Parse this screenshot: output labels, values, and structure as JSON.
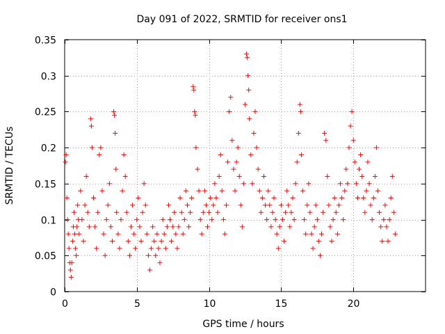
{
  "chart_data": {
    "type": "scatter",
    "title": "Day 091 of 2022, SRMTID for receiver ons1",
    "xlabel": "GPS time / hours",
    "ylabel": "SRMTID / TECUs",
    "xlim": [
      0,
      25
    ],
    "ylim": [
      0,
      0.35
    ],
    "xticks": [
      0,
      5,
      10,
      15,
      20
    ],
    "yticks": [
      0,
      0.05,
      0.1,
      0.15,
      0.2,
      0.25,
      0.3,
      0.35
    ],
    "xtick_labels": [
      "0",
      "5",
      "10",
      "15",
      "20"
    ],
    "ytick_labels": [
      "0",
      "0.05",
      "0.1",
      "0.15",
      "0.2",
      "0.25",
      "0.3",
      "0.35"
    ],
    "grid": true,
    "marker": "+",
    "color": "#ff0000",
    "series": [
      {
        "name": "ons1",
        "points": [
          [
            0.05,
            0.18
          ],
          [
            0.1,
            0.19
          ],
          [
            0.15,
            0.13
          ],
          [
            0.2,
            0.1
          ],
          [
            0.25,
            0.08
          ],
          [
            0.3,
            0.06
          ],
          [
            0.35,
            0.04
          ],
          [
            0.4,
            0.03
          ],
          [
            0.45,
            0.02
          ],
          [
            0.5,
            0.04
          ],
          [
            0.55,
            0.07
          ],
          [
            0.6,
            0.09
          ],
          [
            0.65,
            0.11
          ],
          [
            0.7,
            0.08
          ],
          [
            0.75,
            0.06
          ],
          [
            0.8,
            0.05
          ],
          [
            0.85,
            0.09
          ],
          [
            0.9,
            0.12
          ],
          [
            0.95,
            0.1
          ],
          [
            1.0,
            0.08
          ],
          [
            1.1,
            0.14
          ],
          [
            1.2,
            0.1
          ],
          [
            1.3,
            0.07
          ],
          [
            1.4,
            0.12
          ],
          [
            1.5,
            0.16
          ],
          [
            1.6,
            0.11
          ],
          [
            1.7,
            0.09
          ],
          [
            1.8,
            0.24
          ],
          [
            1.85,
            0.23
          ],
          [
            1.9,
            0.2
          ],
          [
            2.0,
            0.13
          ],
          [
            2.1,
            0.09
          ],
          [
            2.2,
            0.06
          ],
          [
            2.3,
            0.11
          ],
          [
            2.4,
            0.19
          ],
          [
            2.5,
            0.2
          ],
          [
            2.6,
            0.14
          ],
          [
            2.7,
            0.08
          ],
          [
            2.8,
            0.05
          ],
          [
            2.9,
            0.1
          ],
          [
            3.0,
            0.12
          ],
          [
            3.1,
            0.15
          ],
          [
            3.2,
            0.09
          ],
          [
            3.3,
            0.07
          ],
          [
            3.4,
            0.25
          ],
          [
            3.45,
            0.245
          ],
          [
            3.5,
            0.22
          ],
          [
            3.55,
            0.17
          ],
          [
            3.6,
            0.11
          ],
          [
            3.7,
            0.08
          ],
          [
            3.8,
            0.06
          ],
          [
            3.9,
            0.1
          ],
          [
            4.0,
            0.14
          ],
          [
            4.1,
            0.19
          ],
          [
            4.2,
            0.16
          ],
          [
            4.3,
            0.11
          ],
          [
            4.4,
            0.07
          ],
          [
            4.5,
            0.05
          ],
          [
            4.6,
            0.09
          ],
          [
            4.7,
            0.12
          ],
          [
            4.8,
            0.08
          ],
          [
            4.9,
            0.06
          ],
          [
            5.0,
            0.1
          ],
          [
            5.1,
            0.13
          ],
          [
            5.2,
            0.09
          ],
          [
            5.3,
            0.07
          ],
          [
            5.4,
            0.11
          ],
          [
            5.5,
            0.15
          ],
          [
            5.6,
            0.12
          ],
          [
            5.7,
            0.08
          ],
          [
            5.8,
            0.05
          ],
          [
            5.9,
            0.03
          ],
          [
            6.0,
            0.06
          ],
          [
            6.1,
            0.09
          ],
          [
            6.2,
            0.07
          ],
          [
            6.3,
            0.05
          ],
          [
            6.4,
            0.08
          ],
          [
            6.5,
            0.06
          ],
          [
            6.6,
            0.04
          ],
          [
            6.7,
            0.07
          ],
          [
            6.8,
            0.1
          ],
          [
            6.9,
            0.08
          ],
          [
            7.0,
            0.06
          ],
          [
            7.1,
            0.09
          ],
          [
            7.2,
            0.12
          ],
          [
            7.3,
            0.1
          ],
          [
            7.4,
            0.07
          ],
          [
            7.5,
            0.09
          ],
          [
            7.6,
            0.11
          ],
          [
            7.7,
            0.08
          ],
          [
            7.8,
            0.06
          ],
          [
            7.9,
            0.09
          ],
          [
            8.0,
            0.13
          ],
          [
            8.1,
            0.11
          ],
          [
            8.2,
            0.08
          ],
          [
            8.3,
            0.1
          ],
          [
            8.4,
            0.14
          ],
          [
            8.5,
            0.12
          ],
          [
            8.6,
            0.09
          ],
          [
            8.7,
            0.11
          ],
          [
            8.8,
            0.13
          ],
          [
            8.9,
            0.285
          ],
          [
            8.95,
            0.28
          ],
          [
            9.0,
            0.25
          ],
          [
            9.05,
            0.245
          ],
          [
            9.1,
            0.2
          ],
          [
            9.2,
            0.17
          ],
          [
            9.3,
            0.14
          ],
          [
            9.4,
            0.1
          ],
          [
            9.5,
            0.08
          ],
          [
            9.6,
            0.11
          ],
          [
            9.7,
            0.14
          ],
          [
            9.8,
            0.12
          ],
          [
            9.9,
            0.09
          ],
          [
            10.0,
            0.11
          ],
          [
            10.1,
            0.13
          ],
          [
            10.2,
            0.1
          ],
          [
            10.3,
            0.12
          ],
          [
            10.4,
            0.15
          ],
          [
            10.5,
            0.13
          ],
          [
            10.6,
            0.11
          ],
          [
            10.7,
            0.16
          ],
          [
            10.8,
            0.19
          ],
          [
            10.9,
            0.14
          ],
          [
            11.0,
            0.1
          ],
          [
            11.1,
            0.08
          ],
          [
            11.2,
            0.12
          ],
          [
            11.3,
            0.18
          ],
          [
            11.4,
            0.25
          ],
          [
            11.5,
            0.27
          ],
          [
            11.6,
            0.21
          ],
          [
            11.7,
            0.17
          ],
          [
            11.8,
            0.14
          ],
          [
            11.9,
            0.18
          ],
          [
            12.0,
            0.2
          ],
          [
            12.1,
            0.16
          ],
          [
            12.2,
            0.12
          ],
          [
            12.3,
            0.09
          ],
          [
            12.4,
            0.15
          ],
          [
            12.5,
            0.26
          ],
          [
            12.6,
            0.33
          ],
          [
            12.65,
            0.325
          ],
          [
            12.7,
            0.3
          ],
          [
            12.75,
            0.28
          ],
          [
            12.8,
            0.24
          ],
          [
            12.9,
            0.19
          ],
          [
            13.0,
            0.15
          ],
          [
            13.1,
            0.22
          ],
          [
            13.2,
            0.25
          ],
          [
            13.3,
            0.2
          ],
          [
            13.4,
            0.17
          ],
          [
            13.5,
            0.14
          ],
          [
            13.6,
            0.11
          ],
          [
            13.7,
            0.13
          ],
          [
            13.8,
            0.16
          ],
          [
            13.9,
            0.12
          ],
          [
            14.0,
            0.1
          ],
          [
            14.1,
            0.14
          ],
          [
            14.2,
            0.12
          ],
          [
            14.3,
            0.09
          ],
          [
            14.4,
            0.11
          ],
          [
            14.5,
            0.13
          ],
          [
            14.6,
            0.1
          ],
          [
            14.7,
            0.08
          ],
          [
            14.8,
            0.06
          ],
          [
            14.9,
            0.09
          ],
          [
            15.0,
            0.12
          ],
          [
            15.1,
            0.1
          ],
          [
            15.2,
            0.07
          ],
          [
            15.3,
            0.11
          ],
          [
            15.4,
            0.14
          ],
          [
            15.5,
            0.12
          ],
          [
            15.6,
            0.09
          ],
          [
            15.7,
            0.11
          ],
          [
            15.8,
            0.13
          ],
          [
            15.9,
            0.1
          ],
          [
            16.0,
            0.15
          ],
          [
            16.1,
            0.18
          ],
          [
            16.2,
            0.22
          ],
          [
            16.3,
            0.26
          ],
          [
            16.35,
            0.25
          ],
          [
            16.4,
            0.19
          ],
          [
            16.5,
            0.14
          ],
          [
            16.6,
            0.1
          ],
          [
            16.7,
            0.08
          ],
          [
            16.8,
            0.12
          ],
          [
            16.9,
            0.15
          ],
          [
            17.0,
            0.11
          ],
          [
            17.1,
            0.08
          ],
          [
            17.2,
            0.06
          ],
          [
            17.3,
            0.09
          ],
          [
            17.4,
            0.12
          ],
          [
            17.5,
            0.1
          ],
          [
            17.6,
            0.07
          ],
          [
            17.7,
            0.05
          ],
          [
            17.8,
            0.08
          ],
          [
            17.9,
            0.11
          ],
          [
            18.0,
            0.22
          ],
          [
            18.1,
            0.21
          ],
          [
            18.2,
            0.16
          ],
          [
            18.3,
            0.12
          ],
          [
            18.4,
            0.09
          ],
          [
            18.5,
            0.07
          ],
          [
            18.6,
            0.1
          ],
          [
            18.7,
            0.13
          ],
          [
            18.8,
            0.11
          ],
          [
            18.9,
            0.08
          ],
          [
            19.0,
            0.12
          ],
          [
            19.1,
            0.15
          ],
          [
            19.2,
            0.13
          ],
          [
            19.3,
            0.1
          ],
          [
            19.4,
            0.14
          ],
          [
            19.5,
            0.17
          ],
          [
            19.6,
            0.15
          ],
          [
            19.7,
            0.2
          ],
          [
            19.8,
            0.23
          ],
          [
            19.9,
            0.25
          ],
          [
            20.0,
            0.21
          ],
          [
            20.1,
            0.18
          ],
          [
            20.2,
            0.15
          ],
          [
            20.3,
            0.13
          ],
          [
            20.4,
            0.17
          ],
          [
            20.5,
            0.19
          ],
          [
            20.6,
            0.16
          ],
          [
            20.7,
            0.13
          ],
          [
            20.8,
            0.11
          ],
          [
            20.9,
            0.14
          ],
          [
            21.0,
            0.18
          ],
          [
            21.1,
            0.15
          ],
          [
            21.2,
            0.12
          ],
          [
            21.3,
            0.1
          ],
          [
            21.4,
            0.13
          ],
          [
            21.5,
            0.16
          ],
          [
            21.6,
            0.2
          ],
          [
            21.7,
            0.14
          ],
          [
            21.8,
            0.11
          ],
          [
            21.9,
            0.09
          ],
          [
            22.0,
            0.07
          ],
          [
            22.1,
            0.1
          ],
          [
            22.2,
            0.12
          ],
          [
            22.3,
            0.09
          ],
          [
            22.4,
            0.07
          ],
          [
            22.5,
            0.1
          ],
          [
            22.6,
            0.13
          ],
          [
            22.7,
            0.16
          ],
          [
            22.8,
            0.11
          ],
          [
            22.9,
            0.08
          ]
        ]
      }
    ]
  }
}
